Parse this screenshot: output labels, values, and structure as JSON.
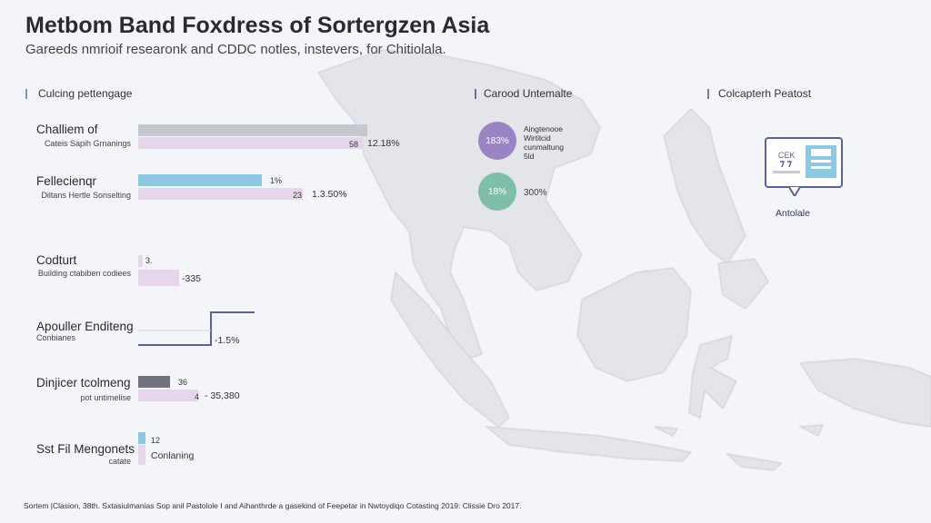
{
  "header": {
    "title": "Metbom Band Foxdress of Sortergzen Asia",
    "subtitle": "Gareeds nmrioif researonk and CDDC notles, instevers, for Chitiolala."
  },
  "sections": {
    "left": "Culcing pettengage",
    "middle": "Carood Untemalte",
    "right": "Colcapterh Peatost"
  },
  "colors": {
    "gray_bar": "#c6c8d0",
    "blue_bar": "#8ec7e0",
    "pink_bar": "#e6d6ec",
    "dark_bar": "#707280",
    "purple_bubble": "#9a84c4",
    "teal_bubble": "#7fbfaa",
    "accent_line": "#5c6296",
    "section_mark_left": "#7898b8",
    "section_mark_mid": "#7a66a8",
    "section_mark_right": "#7a7a9a"
  },
  "chart_data": {
    "type": "bar",
    "rows": [
      {
        "label": "Challiem of",
        "sub": "Cateis Sapih Grnanings",
        "bars": [
          {
            "value": 100,
            "color": "gray"
          },
          {
            "value": 98,
            "color": "pink",
            "tag": "58"
          }
        ],
        "side": "12.18%"
      },
      {
        "label": "Fellecienqr",
        "sub": "Diltans Hertle Sonselting",
        "bars": [
          {
            "value": 54,
            "color": "blue",
            "tag": "1%"
          },
          {
            "value": 72,
            "color": "pink",
            "tag": "23"
          }
        ],
        "side": "1.3.50%"
      },
      {
        "label": "Codturt",
        "sub": "Building ctabiben codiees",
        "bars": [
          {
            "value": 2,
            "color": "pink",
            "tag": "3."
          },
          {
            "value": 18,
            "color": "pink"
          }
        ],
        "side": "-335"
      },
      {
        "label": "Apouller Enditeng",
        "sub": "Conbianes",
        "bars": [
          {
            "value": 50,
            "color": "line"
          },
          {
            "value": 30,
            "color": "line"
          }
        ],
        "side": "-1.5%"
      },
      {
        "label": "Dinjicer tcolmeng",
        "sub": "pot untimelise",
        "bars": [
          {
            "value": 14,
            "color": "dark",
            "tag": "36"
          },
          {
            "value": 26,
            "color": "pink",
            "tag": "4"
          }
        ],
        "side": "- 35,380"
      },
      {
        "label": "Sst Fil Mengonets",
        "sub": "catate",
        "bars": [
          {
            "value": 3,
            "color": "blue",
            "tag": "12"
          },
          {
            "value": 3,
            "color": "pink"
          }
        ],
        "side": "Conlaning"
      }
    ],
    "bubbles": [
      {
        "value": "183%",
        "color": "purple",
        "note": [
          "Aingtenooe",
          "Wirtilcid",
          "cunmaltung",
          "5ld"
        ]
      },
      {
        "value": "18%",
        "color": "teal",
        "note": [
          "300%"
        ]
      }
    ]
  },
  "doc_card": {
    "text": "CEK",
    "caption": "Antolale"
  },
  "footer": "Sortem |Clasion, 38th. Sxtasiulmanias Sop anil Pastolole I and Aihanthrde a gasekind of Feepetar in Nwtoydiqo Cotasting 2019: Clissie Dro 2017."
}
